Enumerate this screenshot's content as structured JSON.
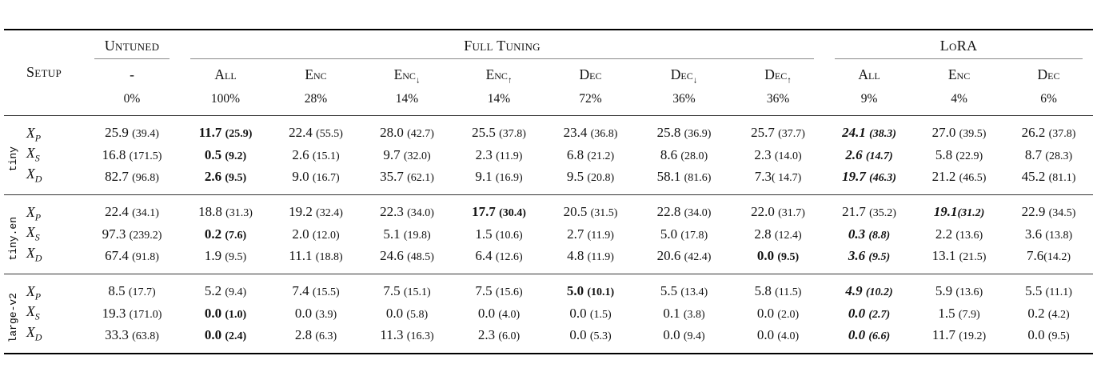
{
  "colors": {
    "background": "#ffffff",
    "text": "#111111",
    "rule_heavy": "#000000",
    "rule_mid": "#333333",
    "rule_light": "#8a8a8a"
  },
  "header": {
    "setup": "Setup",
    "groups": {
      "untuned": "Untuned",
      "full_tuning": "Full Tuning",
      "lora": "LoRA"
    },
    "cols": [
      {
        "name": "-",
        "pct": "0%"
      },
      {
        "name": "All",
        "pct": "100%"
      },
      {
        "name": "Enc",
        "pct": "28%"
      },
      {
        "name": "Enc",
        "arrow": "↓",
        "pct": "14%"
      },
      {
        "name": "Enc",
        "arrow": "↑",
        "pct": "14%"
      },
      {
        "name": "Dec",
        "pct": "72%"
      },
      {
        "name": "Dec",
        "arrow": "↓",
        "pct": "36%"
      },
      {
        "name": "Dec",
        "arrow": "↑",
        "pct": "36%"
      },
      {
        "name": "All",
        "pct": "9%"
      },
      {
        "name": "Enc",
        "pct": "4%"
      },
      {
        "name": "Dec",
        "pct": "6%"
      }
    ]
  },
  "body": {
    "groups": [
      {
        "label": "tiny",
        "rows": [
          {
            "var": "X",
            "sub": "P",
            "cells": [
              {
                "v": "25.9",
                "p": "(39.4)"
              },
              {
                "v": "11.7",
                "p": "(25.9)",
                "s": "b"
              },
              {
                "v": "22.4",
                "p": "(55.5)"
              },
              {
                "v": "28.0",
                "p": "(42.7)"
              },
              {
                "v": "25.5",
                "p": "(37.8)"
              },
              {
                "v": "23.4",
                "p": "(36.8)"
              },
              {
                "v": "25.8",
                "p": "(36.9)"
              },
              {
                "v": "25.7",
                "p": "(37.7)"
              },
              {
                "v": "24.1",
                "p": "(38.3)",
                "s": "bi"
              },
              {
                "v": "27.0",
                "p": "(39.5)"
              },
              {
                "v": "26.2",
                "p": "(37.8)"
              }
            ]
          },
          {
            "var": "X",
            "sub": "S",
            "cells": [
              {
                "v": "16.8",
                "p": "(171.5)"
              },
              {
                "v": "0.5",
                "p": "(9.2)",
                "s": "b"
              },
              {
                "v": "2.6",
                "p": "(15.1)"
              },
              {
                "v": "9.7",
                "p": "(32.0)"
              },
              {
                "v": "2.3",
                "p": "(11.9)"
              },
              {
                "v": "6.8",
                "p": "(21.2)"
              },
              {
                "v": "8.6",
                "p": "(28.0)"
              },
              {
                "v": "2.3",
                "p": "(14.0)"
              },
              {
                "v": "2.6",
                "p": "(14.7)",
                "s": "bi"
              },
              {
                "v": "5.8",
                "p": "(22.9)"
              },
              {
                "v": "8.7",
                "p": "(28.3)"
              }
            ]
          },
          {
            "var": "X",
            "sub": "D",
            "cells": [
              {
                "v": "82.7",
                "p": "(96.8)"
              },
              {
                "v": "2.6",
                "p": "(9.5)",
                "s": "b"
              },
              {
                "v": "9.0",
                "p": "(16.7)"
              },
              {
                "v": "35.7",
                "p": "(62.1)"
              },
              {
                "v": "9.1",
                "p": "(16.9)"
              },
              {
                "v": "9.5",
                "p": "(20.8)"
              },
              {
                "v": "58.1",
                "p": "(81.6)"
              },
              {
                "v": "7.3",
                "p": "( 14.7)",
                "ns": true
              },
              {
                "v": "19.7",
                "p": "(46.3)",
                "s": "bi"
              },
              {
                "v": "21.2",
                "p": "(46.5)"
              },
              {
                "v": "45.2",
                "p": "(81.1)"
              }
            ]
          }
        ]
      },
      {
        "label": "tiny.en",
        "rows": [
          {
            "var": "X",
            "sub": "P",
            "cells": [
              {
                "v": "22.4",
                "p": "(34.1)"
              },
              {
                "v": "18.8",
                "p": "(31.3)"
              },
              {
                "v": "19.2",
                "p": "(32.4)"
              },
              {
                "v": "22.3",
                "p": "(34.0)"
              },
              {
                "v": "17.7",
                "p": "(30.4)",
                "s": "b"
              },
              {
                "v": "20.5",
                "p": "(31.5)"
              },
              {
                "v": "22.8",
                "p": "(34.0)"
              },
              {
                "v": "22.0",
                "p": "(31.7)"
              },
              {
                "v": "21.7",
                "p": "(35.2)"
              },
              {
                "v": "19.1",
                "p": "(31.2)",
                "s": "bi",
                "ns": true
              },
              {
                "v": "22.9",
                "p": "(34.5)"
              }
            ]
          },
          {
            "var": "X",
            "sub": "S",
            "cells": [
              {
                "v": "97.3",
                "p": "(239.2)"
              },
              {
                "v": "0.2",
                "p": "(7.6)",
                "s": "b"
              },
              {
                "v": "2.0",
                "p": "(12.0)"
              },
              {
                "v": "5.1",
                "p": "(19.8)"
              },
              {
                "v": "1.5",
                "p": "(10.6)"
              },
              {
                "v": "2.7",
                "p": "(11.9)"
              },
              {
                "v": "5.0",
                "p": "(17.8)"
              },
              {
                "v": "2.8",
                "p": "(12.4)"
              },
              {
                "v": "0.3",
                "p": "(8.8)",
                "s": "bi"
              },
              {
                "v": "2.2",
                "p": "(13.6)"
              },
              {
                "v": "3.6",
                "p": "(13.8)"
              }
            ]
          },
          {
            "var": "X",
            "sub": "D",
            "cells": [
              {
                "v": "67.4",
                "p": "(91.8)"
              },
              {
                "v": "1.9",
                "p": "(9.5)"
              },
              {
                "v": "11.1",
                "p": "(18.8)"
              },
              {
                "v": "24.6",
                "p": "(48.5)"
              },
              {
                "v": "6.4",
                "p": "(12.6)"
              },
              {
                "v": "4.8",
                "p": "(11.9)"
              },
              {
                "v": "20.6",
                "p": "(42.4)"
              },
              {
                "v": "0.0",
                "p": "(9.5)",
                "s": "b"
              },
              {
                "v": "3.6",
                "p": "(9.5)",
                "s": "bi"
              },
              {
                "v": "13.1",
                "p": "(21.5)"
              },
              {
                "v": "7.6",
                "p": "(14.2)",
                "ns": true
              }
            ]
          }
        ]
      },
      {
        "label": "large-v2",
        "rows": [
          {
            "var": "X",
            "sub": "P",
            "cells": [
              {
                "v": "8.5",
                "p": "(17.7)"
              },
              {
                "v": "5.2",
                "p": "(9.4)"
              },
              {
                "v": "7.4",
                "p": "(15.5)"
              },
              {
                "v": "7.5",
                "p": "(15.1)"
              },
              {
                "v": "7.5",
                "p": "(15.6)"
              },
              {
                "v": "5.0",
                "p": "(10.1)",
                "s": "b"
              },
              {
                "v": "5.5",
                "p": "(13.4)"
              },
              {
                "v": "5.8",
                "p": "(11.5)"
              },
              {
                "v": "4.9",
                "p": "(10.2)",
                "s": "bi"
              },
              {
                "v": "5.9",
                "p": "(13.6)"
              },
              {
                "v": "5.5",
                "p": "(11.1)"
              }
            ]
          },
          {
            "var": "X",
            "sub": "S",
            "cells": [
              {
                "v": "19.3",
                "p": "(171.0)"
              },
              {
                "v": "0.0",
                "p": "(1.0)",
                "s": "b"
              },
              {
                "v": "0.0",
                "p": "(3.9)"
              },
              {
                "v": "0.0",
                "p": "(5.8)"
              },
              {
                "v": "0.0",
                "p": "(4.0)"
              },
              {
                "v": "0.0",
                "p": "(1.5)"
              },
              {
                "v": "0.1",
                "p": "(3.8)"
              },
              {
                "v": "0.0",
                "p": "(2.0)"
              },
              {
                "v": "0.0",
                "p": "(2.7)",
                "s": "bi"
              },
              {
                "v": "1.5",
                "p": "(7.9)"
              },
              {
                "v": "0.2",
                "p": "(4.2)"
              }
            ]
          },
          {
            "var": "X",
            "sub": "D",
            "cells": [
              {
                "v": "33.3",
                "p": "(63.8)"
              },
              {
                "v": "0.0",
                "p": "(2.4)",
                "s": "b"
              },
              {
                "v": "2.8",
                "p": "(6.3)"
              },
              {
                "v": "11.3",
                "p": "(16.3)"
              },
              {
                "v": "2.3",
                "p": "(6.0)"
              },
              {
                "v": "0.0",
                "p": "(5.3)"
              },
              {
                "v": "0.0",
                "p": "(9.4)"
              },
              {
                "v": "0.0",
                "p": "(4.0)"
              },
              {
                "v": "0.0",
                "p": "(6.6)",
                "s": "bi"
              },
              {
                "v": "11.7",
                "p": "(19.2)"
              },
              {
                "v": "0.0",
                "p": "(9.5)"
              }
            ]
          }
        ]
      }
    ]
  }
}
